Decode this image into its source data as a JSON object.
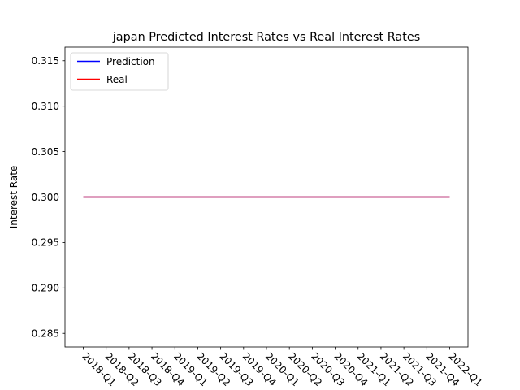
{
  "chart_data": {
    "type": "line",
    "title": "japan Predicted Interest Rates vs Real Interest Rates",
    "xlabel": "",
    "ylabel": "Interest Rate",
    "x": [
      "2018-Q1",
      "2018-Q2",
      "2018-Q3",
      "2018-Q4",
      "2019-Q1",
      "2019-Q2",
      "2019-Q3",
      "2019-Q4",
      "2020-Q1",
      "2020-Q2",
      "2020-Q3",
      "2020-Q4",
      "2021-Q1",
      "2021-Q2",
      "2021-Q3",
      "2021-Q4",
      "2022-Q1"
    ],
    "ylim": [
      0.2835,
      0.3165
    ],
    "yticks": [
      0.285,
      0.29,
      0.295,
      0.3,
      0.305,
      0.31,
      0.315
    ],
    "ytick_labels": [
      "0.285",
      "0.290",
      "0.295",
      "0.300",
      "0.305",
      "0.310",
      "0.315"
    ],
    "grid": false,
    "legend_position": "top-left",
    "series": [
      {
        "name": "Prediction",
        "color": "#0000ff",
        "values": [
          0.3,
          0.3,
          0.3,
          0.3,
          0.3,
          0.3,
          0.3,
          0.3,
          0.3,
          0.3,
          0.3,
          0.3,
          0.3,
          0.3,
          0.3,
          0.3,
          0.3
        ]
      },
      {
        "name": "Real",
        "color": "#ff0000",
        "values": [
          0.3,
          0.3,
          0.3,
          0.3,
          0.3,
          0.3,
          0.3,
          0.3,
          0.3,
          0.3,
          0.3,
          0.3,
          0.3,
          0.3,
          0.3,
          0.3,
          0.3
        ]
      }
    ]
  }
}
